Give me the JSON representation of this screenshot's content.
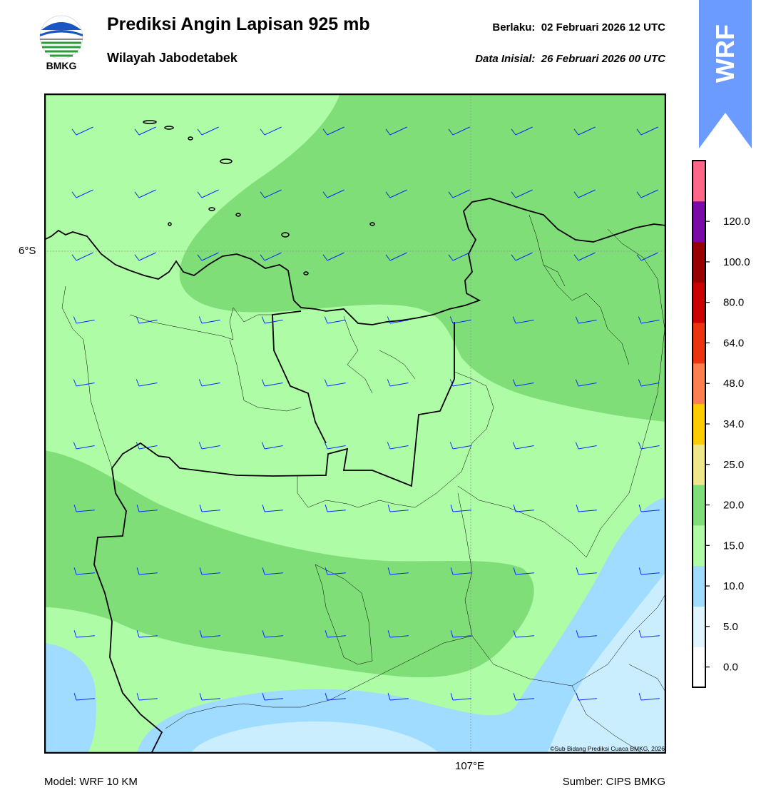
{
  "header": {
    "title": "Prediksi Angin Lapisan 925 mb",
    "subtitle": "Wilayah Jabodetabek",
    "valid_label": "Berlaku:",
    "valid_time": "02 Februari 2026 12 UTC",
    "init_label": "Data Inisial:",
    "init_time": "26 Februari 2026 00 UTC"
  },
  "logo": {
    "name": "bmkg-logo",
    "text": "BMKG"
  },
  "ribbon": {
    "text": "WRF",
    "color": "#6b9bff"
  },
  "map": {
    "lat_label": "6°S",
    "lon_label": "107°E",
    "copyright": "©Sub Bidang Prediksi Cuaca BMKG, 2026",
    "barb_color": "#0a2aff",
    "zone_colors": {
      "lightblue": "#cbeeff",
      "blue": "#9fdcff",
      "lightgreen": "#aefca6",
      "green": "#7fde78"
    }
  },
  "colorbar": {
    "levels": [
      "0.0",
      "5.0",
      "10.0",
      "15.0",
      "20.0",
      "25.0",
      "34.0",
      "48.0",
      "64.0",
      "80.0",
      "100.0",
      "120.0"
    ],
    "colors": [
      "#ffffff",
      "#dff5ff",
      "#9fdcff",
      "#aefca6",
      "#7fde78",
      "#f0e68c",
      "#ffcc00",
      "#ff7f50",
      "#ee3311",
      "#cc0000",
      "#990000",
      "#7a0ba8",
      "#ff6688"
    ]
  },
  "footer": {
    "model": "Model: WRF 10 KM",
    "source": "Sumber: CIPS BMKG"
  }
}
